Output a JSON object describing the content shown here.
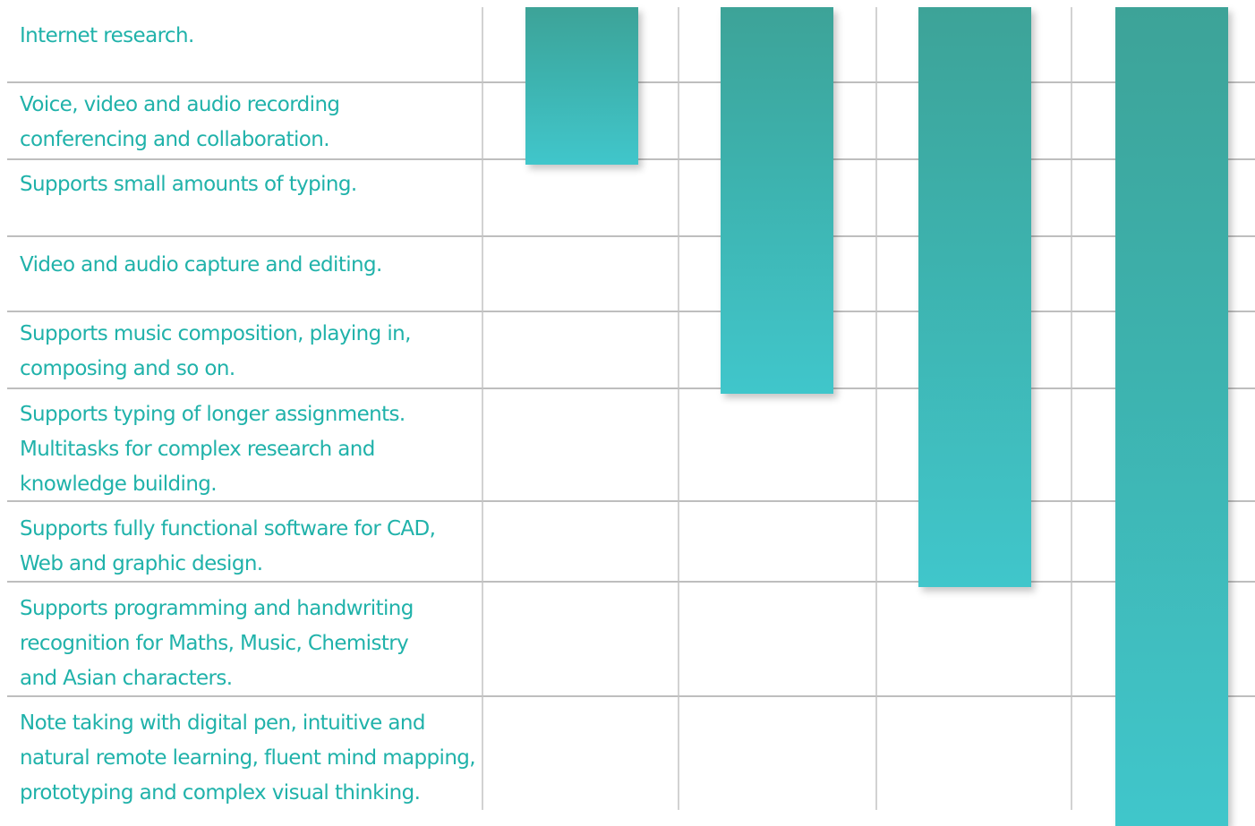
{
  "colors": {
    "bar_top": "#3ca398",
    "bar_bottom": "#40c6cb",
    "text": "#20b2aa",
    "row_line": "#a8a8a8",
    "col_line": "#c4c4c4"
  },
  "chart_data": {
    "type": "bar",
    "orientation": "vertical-range",
    "grid": true,
    "categories": [
      "Internet research.",
      "Voice, video and audio recording conferencing and collaboration.",
      "Supports small amounts of typing.",
      "Video and audio capture and editing.",
      "Supports music composition, playing in, composing and so on.",
      "Supports typing of longer assignments. Multitasks for complex research and knowledge building.",
      "Supports fully functional software for CAD, Web and graphic design.",
      "Supports programming and handwriting recognition for Maths, Music, Chemistry and Asian characters.",
      "Note taking with digital pen, intuitive and natural remote learning, fluent mind mapping, prototyping and complex visual thinking."
    ],
    "label_lines": [
      [
        "Internet research."
      ],
      [
        "Voice, video and audio recording",
        "conferencing and collaboration."
      ],
      [
        "Supports small amounts of typing."
      ],
      [
        "Video and audio capture and editing."
      ],
      [
        "Supports music composition, playing in,",
        "composing and so on."
      ],
      [
        "Supports typing of longer assignments.",
        "Multitasks for complex research and",
        "knowledge building."
      ],
      [
        "Supports fully functional software for CAD,",
        "Web and graphic design."
      ],
      [
        "Supports programming and handwriting",
        "recognition for Maths, Music, Chemistry",
        "and Asian characters."
      ],
      [
        "Note taking with digital pen, intuitive and",
        "natural remote learning, fluent mind mapping,",
        "prototyping and complex visual thinking."
      ]
    ],
    "series": [
      {
        "values": [
          1,
          1,
          0,
          0,
          0,
          0,
          0,
          0,
          0
        ]
      },
      {
        "values": [
          1,
          1,
          1,
          1,
          1,
          0,
          0,
          0,
          0
        ]
      },
      {
        "values": [
          1,
          1,
          1,
          1,
          1,
          1,
          1,
          0,
          0
        ]
      },
      {
        "values": [
          1,
          1,
          1,
          1,
          1,
          1,
          1,
          1,
          1
        ]
      }
    ]
  }
}
